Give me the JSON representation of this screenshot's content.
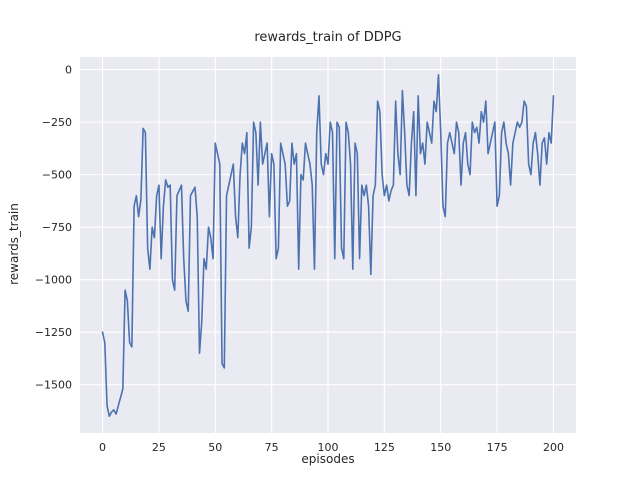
{
  "chart_data": {
    "type": "line",
    "title": "rewards_train of DDPG",
    "xlabel": "episodes",
    "ylabel": "rewards_train",
    "xlim": [
      -10,
      210
    ],
    "ylim": [
      -1730,
      60
    ],
    "x_ticks": [
      0,
      25,
      50,
      75,
      100,
      125,
      150,
      175,
      200
    ],
    "y_ticks": [
      0,
      -250,
      -500,
      -750,
      -1000,
      -1250,
      -1500
    ],
    "grid": true,
    "legend": "none",
    "x_start": 0,
    "x_step": 1,
    "series_name": "rewards_train",
    "values": [
      -1250,
      -1300,
      -1600,
      -1650,
      -1630,
      -1620,
      -1640,
      -1600,
      -1560,
      -1520,
      -1050,
      -1100,
      -1300,
      -1320,
      -650,
      -600,
      -700,
      -620,
      -280,
      -300,
      -850,
      -950,
      -750,
      -800,
      -600,
      -550,
      -900,
      -650,
      -525,
      -560,
      -550,
      -1000,
      -1050,
      -600,
      -575,
      -550,
      -900,
      -1100,
      -1150,
      -600,
      -580,
      -560,
      -700,
      -1350,
      -1200,
      -900,
      -950,
      -750,
      -800,
      -900,
      -350,
      -400,
      -450,
      -1400,
      -1420,
      -600,
      -550,
      -500,
      -450,
      -700,
      -800,
      -500,
      -350,
      -400,
      -300,
      -850,
      -750,
      -250,
      -300,
      -550,
      -250,
      -450,
      -400,
      -350,
      -700,
      -400,
      -450,
      -900,
      -850,
      -350,
      -400,
      -450,
      -650,
      -625,
      -350,
      -450,
      -400,
      -950,
      -500,
      -525,
      -350,
      -400,
      -450,
      -550,
      -950,
      -300,
      -125,
      -450,
      -500,
      -400,
      -450,
      -250,
      -300,
      -900,
      -250,
      -275,
      -850,
      -900,
      -250,
      -300,
      -450,
      -950,
      -350,
      -400,
      -900,
      -550,
      -600,
      -550,
      -650,
      -975,
      -600,
      -550,
      -150,
      -200,
      -500,
      -600,
      -550,
      -625,
      -575,
      -550,
      -150,
      -400,
      -500,
      -100,
      -300,
      -550,
      -600,
      -350,
      -200,
      -600,
      -125,
      -400,
      -350,
      -450,
      -250,
      -300,
      -350,
      -150,
      -200,
      -25,
      -300,
      -650,
      -700,
      -350,
      -300,
      -350,
      -400,
      -250,
      -300,
      -550,
      -350,
      -300,
      -450,
      -500,
      -250,
      -300,
      -275,
      -350,
      -200,
      -250,
      -150,
      -400,
      -350,
      -300,
      -250,
      -650,
      -600,
      -300,
      -250,
      -350,
      -400,
      -550,
      -350,
      -300,
      -250,
      -275,
      -250,
      -150,
      -175,
      -450,
      -500,
      -350,
      -300,
      -400,
      -550,
      -350,
      -325,
      -450,
      -300,
      -350,
      -125
    ],
    "colors": {
      "line": "#4c72b0",
      "axes_bg": "#eaeaf2",
      "grid": "#ffffff",
      "figure_bg": "#ffffff",
      "text": "#262626"
    }
  }
}
